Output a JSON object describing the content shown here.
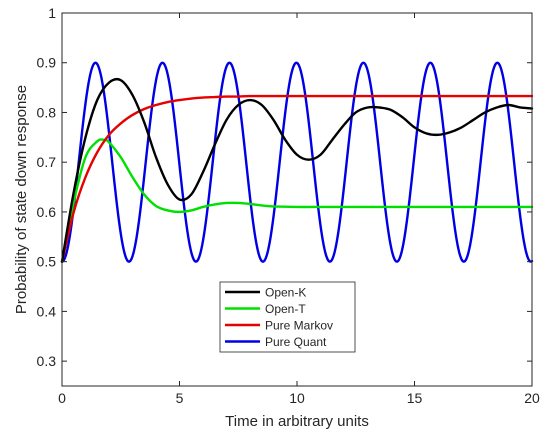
{
  "chart_data": {
    "type": "line",
    "xlabel": "Time in arbitrary units",
    "ylabel": "Probability of state down response",
    "xlim": [
      0,
      20
    ],
    "ylim": [
      0.25,
      1
    ],
    "xticks": [
      0,
      5,
      10,
      15,
      20
    ],
    "yticks": [
      0.3,
      0.4,
      0.5,
      0.6,
      0.7,
      0.8,
      0.9,
      1
    ],
    "xtick_labels": [
      "0",
      "5",
      "10",
      "15",
      "20"
    ],
    "ytick_labels": [
      "0.3",
      "0.4",
      "0.5",
      "0.6",
      "0.7",
      "0.8",
      "0.9",
      "1"
    ],
    "grid": false,
    "legend_position": "bottom-center",
    "series": [
      {
        "name": "Open-K",
        "color": "#000000",
        "x": [
          0,
          0.5,
          1,
          1.5,
          2,
          2.5,
          3,
          3.5,
          4,
          4.5,
          5,
          5.5,
          6,
          6.5,
          7,
          7.5,
          8,
          8.5,
          9,
          9.5,
          10,
          10.5,
          11,
          11.5,
          12,
          12.5,
          13,
          13.5,
          14,
          14.5,
          15,
          15.5,
          16,
          16.5,
          17,
          17.5,
          18,
          18.5,
          19,
          19.5,
          20
        ],
        "y": [
          0.5,
          0.64,
          0.75,
          0.825,
          0.86,
          0.865,
          0.835,
          0.78,
          0.71,
          0.655,
          0.625,
          0.635,
          0.68,
          0.735,
          0.785,
          0.815,
          0.825,
          0.815,
          0.785,
          0.745,
          0.715,
          0.705,
          0.715,
          0.745,
          0.775,
          0.8,
          0.81,
          0.81,
          0.805,
          0.79,
          0.77,
          0.758,
          0.755,
          0.76,
          0.77,
          0.785,
          0.8,
          0.81,
          0.815,
          0.81,
          0.808
        ]
      },
      {
        "name": "Open-T",
        "color": "#00e000",
        "x": [
          0,
          0.5,
          1,
          1.5,
          1.8,
          2,
          2.5,
          3,
          3.5,
          4,
          4.5,
          5,
          5.5,
          6,
          6.5,
          7,
          7.5,
          8,
          8.5,
          9,
          10,
          11,
          12,
          13,
          14,
          15,
          16,
          17,
          18,
          19,
          20
        ],
        "y": [
          0.5,
          0.62,
          0.71,
          0.742,
          0.745,
          0.74,
          0.71,
          0.67,
          0.635,
          0.612,
          0.603,
          0.6,
          0.603,
          0.61,
          0.615,
          0.618,
          0.618,
          0.616,
          0.613,
          0.611,
          0.61,
          0.61,
          0.61,
          0.61,
          0.61,
          0.61,
          0.61,
          0.61,
          0.61,
          0.61,
          0.61
        ]
      },
      {
        "name": "Pure Markov",
        "color": "#e60000",
        "x": [
          0,
          0.5,
          1,
          1.5,
          2,
          2.5,
          3,
          3.5,
          4,
          4.5,
          5,
          5.5,
          6,
          6.5,
          7,
          7.5,
          8,
          9,
          10,
          12,
          14,
          16,
          18,
          20
        ],
        "y": [
          0.5,
          0.6,
          0.67,
          0.72,
          0.755,
          0.778,
          0.795,
          0.807,
          0.815,
          0.821,
          0.825,
          0.828,
          0.83,
          0.831,
          0.832,
          0.832,
          0.833,
          0.833,
          0.833,
          0.833,
          0.833,
          0.833,
          0.833,
          0.833
        ]
      },
      {
        "name": "Pure Quant",
        "color": "#0000e6",
        "function": "0.7 - 0.2*cos(2*pi*t/2.85)",
        "x_range": [
          0,
          20
        ]
      }
    ]
  }
}
